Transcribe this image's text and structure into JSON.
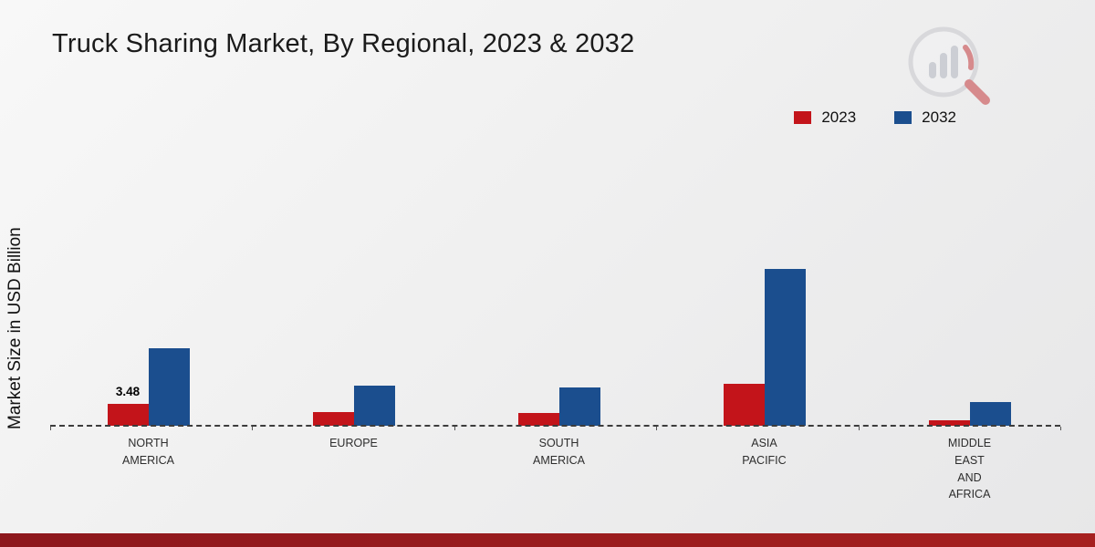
{
  "title": "Truck Sharing Market, By Regional, 2023 & 2032",
  "ylabel": "Market Size in USD Billion",
  "legend": [
    {
      "label": "2023",
      "color": "#c3141a"
    },
    {
      "label": "2032",
      "color": "#1b4e8e"
    }
  ],
  "chart_data": {
    "type": "bar",
    "title": "Truck Sharing Market, By Regional, 2023 & 2032",
    "xlabel": "",
    "ylabel": "Market Size in USD Billion",
    "categories": [
      "NORTH AMERICA",
      "EUROPE",
      "SOUTH AMERICA",
      "ASIA PACIFIC",
      "MIDDLE EAST AND AFRICA"
    ],
    "category_lines": [
      [
        "NORTH",
        "AMERICA"
      ],
      [
        "EUROPE"
      ],
      [
        "SOUTH",
        "AMERICA"
      ],
      [
        "ASIA",
        "PACIFIC"
      ],
      [
        "MIDDLE",
        "EAST",
        "AND",
        "AFRICA"
      ]
    ],
    "series": [
      {
        "name": "2023",
        "color": "#c3141a",
        "values": [
          3.48,
          2.1,
          2.0,
          6.7,
          0.9
        ]
      },
      {
        "name": "2032",
        "color": "#1b4e8e",
        "values": [
          12.3,
          6.3,
          6.1,
          24.8,
          3.8
        ]
      }
    ],
    "data_labels": [
      {
        "series": 0,
        "category": 0,
        "text": "3.48"
      }
    ],
    "ylim": [
      0,
      50
    ],
    "grid": false,
    "legend_position": "top-right",
    "baseline_style": "dashed"
  },
  "footer": {
    "color": "#9a1c20"
  },
  "logo": {
    "name": "market-research-logo"
  }
}
